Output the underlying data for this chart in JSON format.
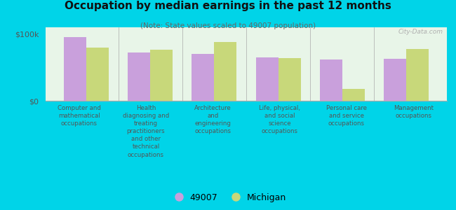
{
  "title": "Occupation by median earnings in the past 12 months",
  "subtitle": "(Note: State values scaled to 49007 population)",
  "categories": [
    "Computer and\nmathematical\noccupations",
    "Health\ndiagnosing and\ntreating\npractitioners\nand other\ntechnical\noccupations",
    "Architecture\nand\nengineering\noccupations",
    "Life, physical,\nand social\nscience\noccupations",
    "Personal care\nand service\noccupations",
    "Management\noccupations"
  ],
  "values_49007": [
    95000,
    72000,
    70000,
    65000,
    62000,
    63000
  ],
  "values_michigan": [
    80000,
    76000,
    88000,
    64000,
    18000,
    78000
  ],
  "color_49007": "#c9a0dc",
  "color_michigan": "#c8d87a",
  "ylim": [
    0,
    110000
  ],
  "yticks": [
    0,
    100000
  ],
  "ytick_labels": [
    "$0",
    "$100k"
  ],
  "background_color": "#e8f5e8",
  "outer_background": "#00d4e8",
  "bar_width": 0.35,
  "legend_49007": "49007",
  "legend_michigan": "Michigan",
  "watermark": "City-Data.com"
}
